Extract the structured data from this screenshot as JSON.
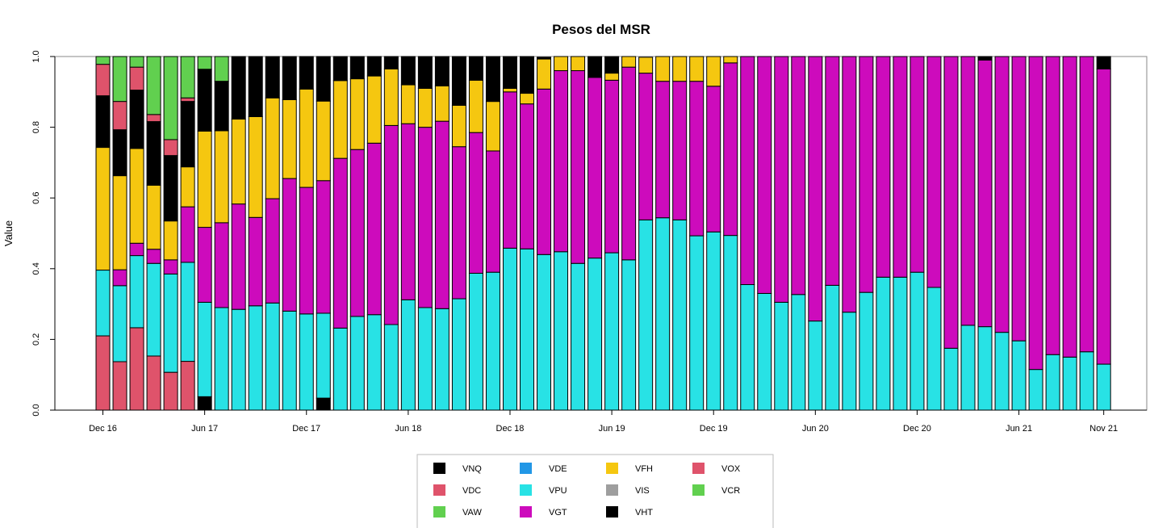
{
  "chart_data": {
    "type": "bar",
    "stacked": true,
    "title": "Pesos del MSR",
    "xlabel": "",
    "ylabel": "Value",
    "ylim": [
      0,
      1
    ],
    "yticks": [
      "0.0",
      "0.2",
      "0.4",
      "0.6",
      "0.8",
      "1.0"
    ],
    "n_periods": 60,
    "x_tick_labels": [
      {
        "index": 0,
        "label": "Dec 16"
      },
      {
        "index": 6,
        "label": "Jun 17"
      },
      {
        "index": 12,
        "label": "Dec 17"
      },
      {
        "index": 18,
        "label": "Jun 18"
      },
      {
        "index": 24,
        "label": "Dec 18"
      },
      {
        "index": 30,
        "label": "Jun 19"
      },
      {
        "index": 36,
        "label": "Dec 19"
      },
      {
        "index": 42,
        "label": "Jun 20"
      },
      {
        "index": 48,
        "label": "Dec 20"
      },
      {
        "index": 54,
        "label": "Jun 21"
      },
      {
        "index": 59,
        "label": "Nov 21"
      }
    ],
    "legend_position": "bottom-center",
    "legend": [
      {
        "name": "VNQ",
        "color": "#000000"
      },
      {
        "name": "VDE",
        "color": "#2297E6"
      },
      {
        "name": "VFH",
        "color": "#F5C710"
      },
      {
        "name": "VOX",
        "color": "#DF536B"
      },
      {
        "name": "VDC",
        "color": "#DF536B"
      },
      {
        "name": "VPU",
        "color": "#28E2E5"
      },
      {
        "name": "VIS",
        "color": "#9E9E9E"
      },
      {
        "name": "VCR",
        "color": "#61D04F"
      },
      {
        "name": "VAW",
        "color": "#61D04F"
      },
      {
        "name": "VGT",
        "color": "#CD0BBC"
      },
      {
        "name": "VHT",
        "color": "#000000"
      }
    ],
    "series": [
      {
        "name": "VDC",
        "color": "#DF536B",
        "values": [
          0.21,
          0.137,
          0.233,
          0.153,
          0.107,
          0.138,
          0,
          0,
          0,
          0,
          0,
          0,
          0,
          0,
          0,
          0,
          0,
          0,
          0,
          0,
          0,
          0,
          0,
          0,
          0,
          0,
          0,
          0,
          0,
          0,
          0,
          0,
          0,
          0,
          0,
          0,
          0,
          0,
          0,
          0,
          0,
          0,
          0,
          0,
          0,
          0,
          0,
          0,
          0,
          0,
          0,
          0,
          0,
          0,
          0,
          0,
          0,
          0,
          0,
          0
        ]
      },
      {
        "name": "VHT",
        "color": "#000000",
        "values": [
          0,
          0,
          0,
          0,
          0,
          0,
          0.038,
          0,
          0,
          0,
          0,
          0,
          0,
          0.034,
          0,
          0,
          0,
          0,
          0,
          0,
          0,
          0,
          0,
          0,
          0,
          0,
          0,
          0,
          0,
          0,
          0,
          0,
          0,
          0,
          0,
          0,
          0,
          0,
          0,
          0,
          0,
          0,
          0,
          0,
          0,
          0,
          0,
          0,
          0,
          0,
          0,
          0,
          0,
          0,
          0,
          0,
          0,
          0,
          0,
          0
        ]
      },
      {
        "name": "VPU",
        "color": "#28E2E5",
        "values": [
          0.186,
          0.215,
          0.204,
          0.262,
          0.278,
          0.28,
          0.267,
          0.29,
          0.285,
          0.295,
          0.303,
          0.28,
          0.272,
          0.24,
          0.232,
          0.265,
          0.27,
          0.242,
          0.312,
          0.29,
          0.287,
          0.315,
          0.387,
          0.39,
          0.458,
          0.456,
          0.44,
          0.448,
          0.415,
          0.43,
          0.445,
          0.425,
          0.538,
          0.544,
          0.538,
          0.493,
          0.504,
          0.494,
          0.355,
          0.33,
          0.305,
          0.327,
          0.252,
          0.353,
          0.277,
          0.333,
          0.376,
          0.376,
          0.39,
          0.347,
          0.175,
          0.24,
          0.236,
          0.22,
          0.196,
          0.115,
          0.157,
          0.15,
          0.165,
          0.13
        ]
      },
      {
        "name": "VGT",
        "color": "#CD0BBC",
        "values": [
          0,
          0.045,
          0.035,
          0.04,
          0.04,
          0.157,
          0.212,
          0.24,
          0.298,
          0.25,
          0.295,
          0.375,
          0.358,
          0.375,
          0.48,
          0.472,
          0.485,
          0.563,
          0.498,
          0.51,
          0.53,
          0.43,
          0.398,
          0.343,
          0.442,
          0.41,
          0.468,
          0.512,
          0.545,
          0.511,
          0.488,
          0.545,
          0.415,
          0.386,
          0.392,
          0.437,
          0.412,
          0.488,
          0.645,
          0.67,
          0.695,
          0.673,
          0.748,
          0.647,
          0.723,
          0.667,
          0.624,
          0.624,
          0.61,
          0.653,
          0.825,
          0.76,
          0.754,
          0.78,
          0.804,
          0.885,
          0.843,
          0.85,
          0.835,
          0.835
        ]
      },
      {
        "name": "VFH",
        "color": "#F5C710",
        "values": [
          0.347,
          0.266,
          0.268,
          0.181,
          0.11,
          0.113,
          0.272,
          0.26,
          0.24,
          0.285,
          0.285,
          0.223,
          0.278,
          0.225,
          0.22,
          0.2,
          0.19,
          0.16,
          0.11,
          0.11,
          0.1,
          0.117,
          0.148,
          0.14,
          0.01,
          0.03,
          0.085,
          0.04,
          0.04,
          0,
          0.02,
          0.03,
          0.045,
          0.07,
          0.07,
          0.07,
          0.084,
          0.018,
          0,
          0,
          0,
          0,
          0,
          0,
          0,
          0,
          0,
          0,
          0,
          0,
          0,
          0,
          0,
          0,
          0,
          0,
          0,
          0,
          0,
          0
        ]
      },
      {
        "name": "VNQ",
        "color": "#000000",
        "values": [
          0.146,
          0.13,
          0.165,
          0.18,
          0.185,
          0.185,
          0.175,
          0.14,
          0.177,
          0.17,
          0.117,
          0.122,
          0.092,
          0.126,
          0.068,
          0.063,
          0.055,
          0.035,
          0.08,
          0.09,
          0.083,
          0.138,
          0.067,
          0.127,
          0.09,
          0.104,
          0.005,
          0,
          0,
          0.059,
          0.047,
          0,
          0,
          0,
          0,
          0,
          0,
          0,
          0,
          0,
          0,
          0,
          0,
          0,
          0,
          0,
          0,
          0,
          0,
          0,
          0,
          0,
          0.01,
          0,
          0,
          0,
          0,
          0,
          0,
          0.035
        ]
      },
      {
        "name": "VOX",
        "color": "#DF536B",
        "values": [
          0.089,
          0.08,
          0.065,
          0.02,
          0.045,
          0.01,
          0,
          0,
          0,
          0,
          0,
          0,
          0,
          0,
          0,
          0,
          0,
          0,
          0,
          0,
          0,
          0,
          0,
          0,
          0,
          0,
          0,
          0,
          0,
          0,
          0,
          0,
          0,
          0,
          0,
          0,
          0,
          0,
          0,
          0,
          0,
          0,
          0,
          0,
          0,
          0,
          0,
          0,
          0,
          0,
          0,
          0,
          0,
          0,
          0,
          0,
          0,
          0,
          0,
          0
        ]
      },
      {
        "name": "VCR",
        "color": "#61D04F",
        "values": [
          0.022,
          0.127,
          0.03,
          0.164,
          0.235,
          0.117,
          0.036,
          0.07,
          0,
          0,
          0,
          0,
          0,
          0,
          0,
          0,
          0,
          0,
          0,
          0,
          0,
          0,
          0,
          0,
          0,
          0,
          0,
          0,
          0,
          0,
          0,
          0,
          0,
          0,
          0,
          0,
          0,
          0,
          0,
          0,
          0,
          0,
          0,
          0,
          0,
          0,
          0,
          0,
          0,
          0,
          0,
          0,
          0,
          0,
          0,
          0,
          0,
          0,
          0,
          0
        ]
      }
    ]
  }
}
